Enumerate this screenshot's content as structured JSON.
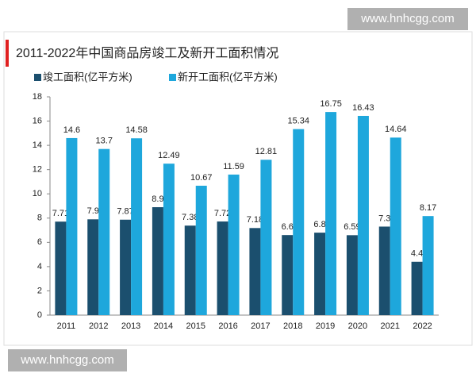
{
  "watermarks": [
    "www.hnhcgg.com",
    "www.hnhcgg.com"
  ],
  "chart_data": {
    "type": "bar",
    "title": "2011-2022年中国商品房竣工及新开工面积情况",
    "categories": [
      "2011",
      "2012",
      "2013",
      "2014",
      "2015",
      "2016",
      "2017",
      "2018",
      "2019",
      "2020",
      "2021",
      "2022"
    ],
    "series": [
      {
        "name": "竣工面积(亿平方米)",
        "color": "#1b4f6e",
        "values": [
          7.71,
          7.9,
          7.87,
          8.9,
          7.38,
          7.72,
          7.18,
          6.6,
          6.8,
          6.59,
          7.3,
          4.4
        ]
      },
      {
        "name": "新开工面积(亿平方米)",
        "color": "#1ea7dc",
        "values": [
          14.6,
          13.7,
          14.58,
          12.49,
          10.67,
          11.59,
          12.81,
          15.34,
          16.75,
          16.43,
          14.64,
          8.17
        ]
      }
    ],
    "ylim": [
      0,
      18
    ],
    "yticks": [
      0,
      2,
      4,
      6,
      8,
      10,
      12,
      14,
      16,
      18
    ],
    "grid": false,
    "legend": "top-left"
  }
}
